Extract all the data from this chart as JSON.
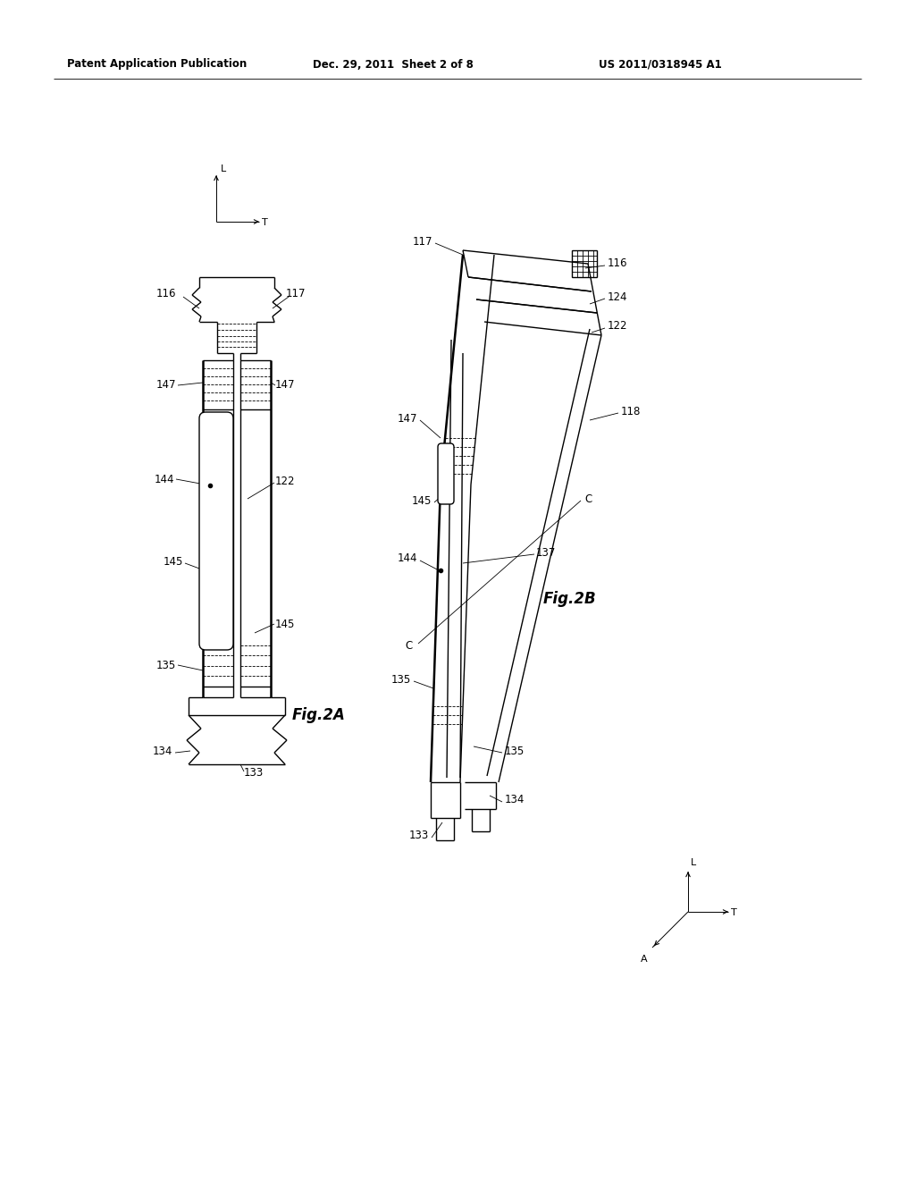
{
  "background_color": "#ffffff",
  "header_left": "Patent Application Publication",
  "header_center": "Dec. 29, 2011  Sheet 2 of 8",
  "header_right": "US 2011/0318945 A1",
  "fig2a_label": "Fig.2A",
  "fig2b_label": "Fig.2B",
  "line_color": "#000000",
  "text_color": "#000000",
  "lw": 1.0,
  "tlw": 0.6,
  "thw": 1.8
}
